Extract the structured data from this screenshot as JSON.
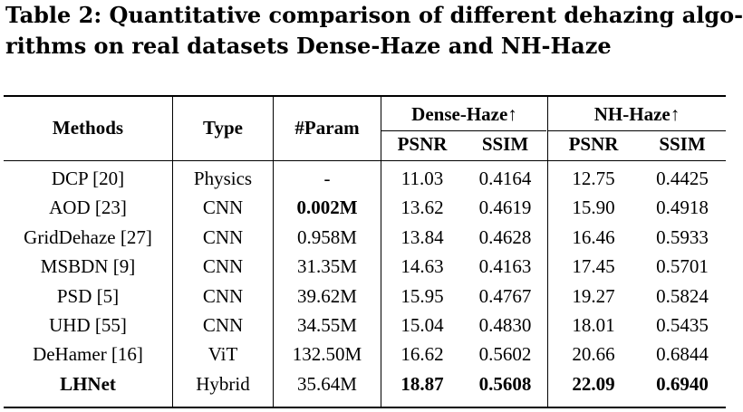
{
  "caption": {
    "line1": "Table 2: Quantitative comparison of different dehazing algo-",
    "line2": "rithms on real datasets Dense-Haze and NH-Haze"
  },
  "header": {
    "methods": "Methods",
    "type": "Type",
    "param": "#Param",
    "group1": "Dense-Haze↑",
    "group2": "NH-Haze↑",
    "psnr1": "PSNR",
    "ssim1": "SSIM",
    "psnr2": "PSNR",
    "ssim2": "SSIM"
  },
  "rows": [
    {
      "method": "DCP [20]",
      "type": "Physics",
      "param": "-",
      "dh_psnr": "11.03",
      "dh_ssim": "0.4164",
      "nh_psnr": "12.75",
      "nh_ssim": "0.4425"
    },
    {
      "method": "AOD [23]",
      "type": "CNN",
      "param": "0.002M",
      "dh_psnr": "13.62",
      "dh_ssim": "0.4619",
      "nh_psnr": "15.90",
      "nh_ssim": "0.4918"
    },
    {
      "method": "GridDehaze [27]",
      "type": "CNN",
      "param": "0.958M",
      "dh_psnr": "13.84",
      "dh_ssim": "0.4628",
      "nh_psnr": "16.46",
      "nh_ssim": "0.5933"
    },
    {
      "method": "MSBDN [9]",
      "type": "CNN",
      "param": "31.35M",
      "dh_psnr": "14.63",
      "dh_ssim": "0.4163",
      "nh_psnr": "17.45",
      "nh_ssim": "0.5701"
    },
    {
      "method": "PSD [5]",
      "type": "CNN",
      "param": "39.62M",
      "dh_psnr": "15.95",
      "dh_ssim": "0.4767",
      "nh_psnr": "19.27",
      "nh_ssim": "0.5824"
    },
    {
      "method": "UHD [55]",
      "type": "CNN",
      "param": "34.55M",
      "dh_psnr": "15.04",
      "dh_ssim": "0.4830",
      "nh_psnr": "18.01",
      "nh_ssim": "0.5435"
    },
    {
      "method": "DeHamer [16]",
      "type": "ViT",
      "param": "132.50M",
      "dh_psnr": "16.62",
      "dh_ssim": "0.5602",
      "nh_psnr": "20.66",
      "nh_ssim": "0.6844"
    },
    {
      "method": "LHNet",
      "type": "Hybrid",
      "param": "35.64M",
      "dh_psnr": "18.87",
      "dh_ssim": "0.5608",
      "nh_psnr": "22.09",
      "nh_ssim": "0.6940"
    }
  ],
  "bold_cells": [
    "1.param",
    "7.method",
    "7.dh_psnr",
    "7.dh_ssim",
    "7.nh_psnr",
    "7.nh_ssim"
  ]
}
